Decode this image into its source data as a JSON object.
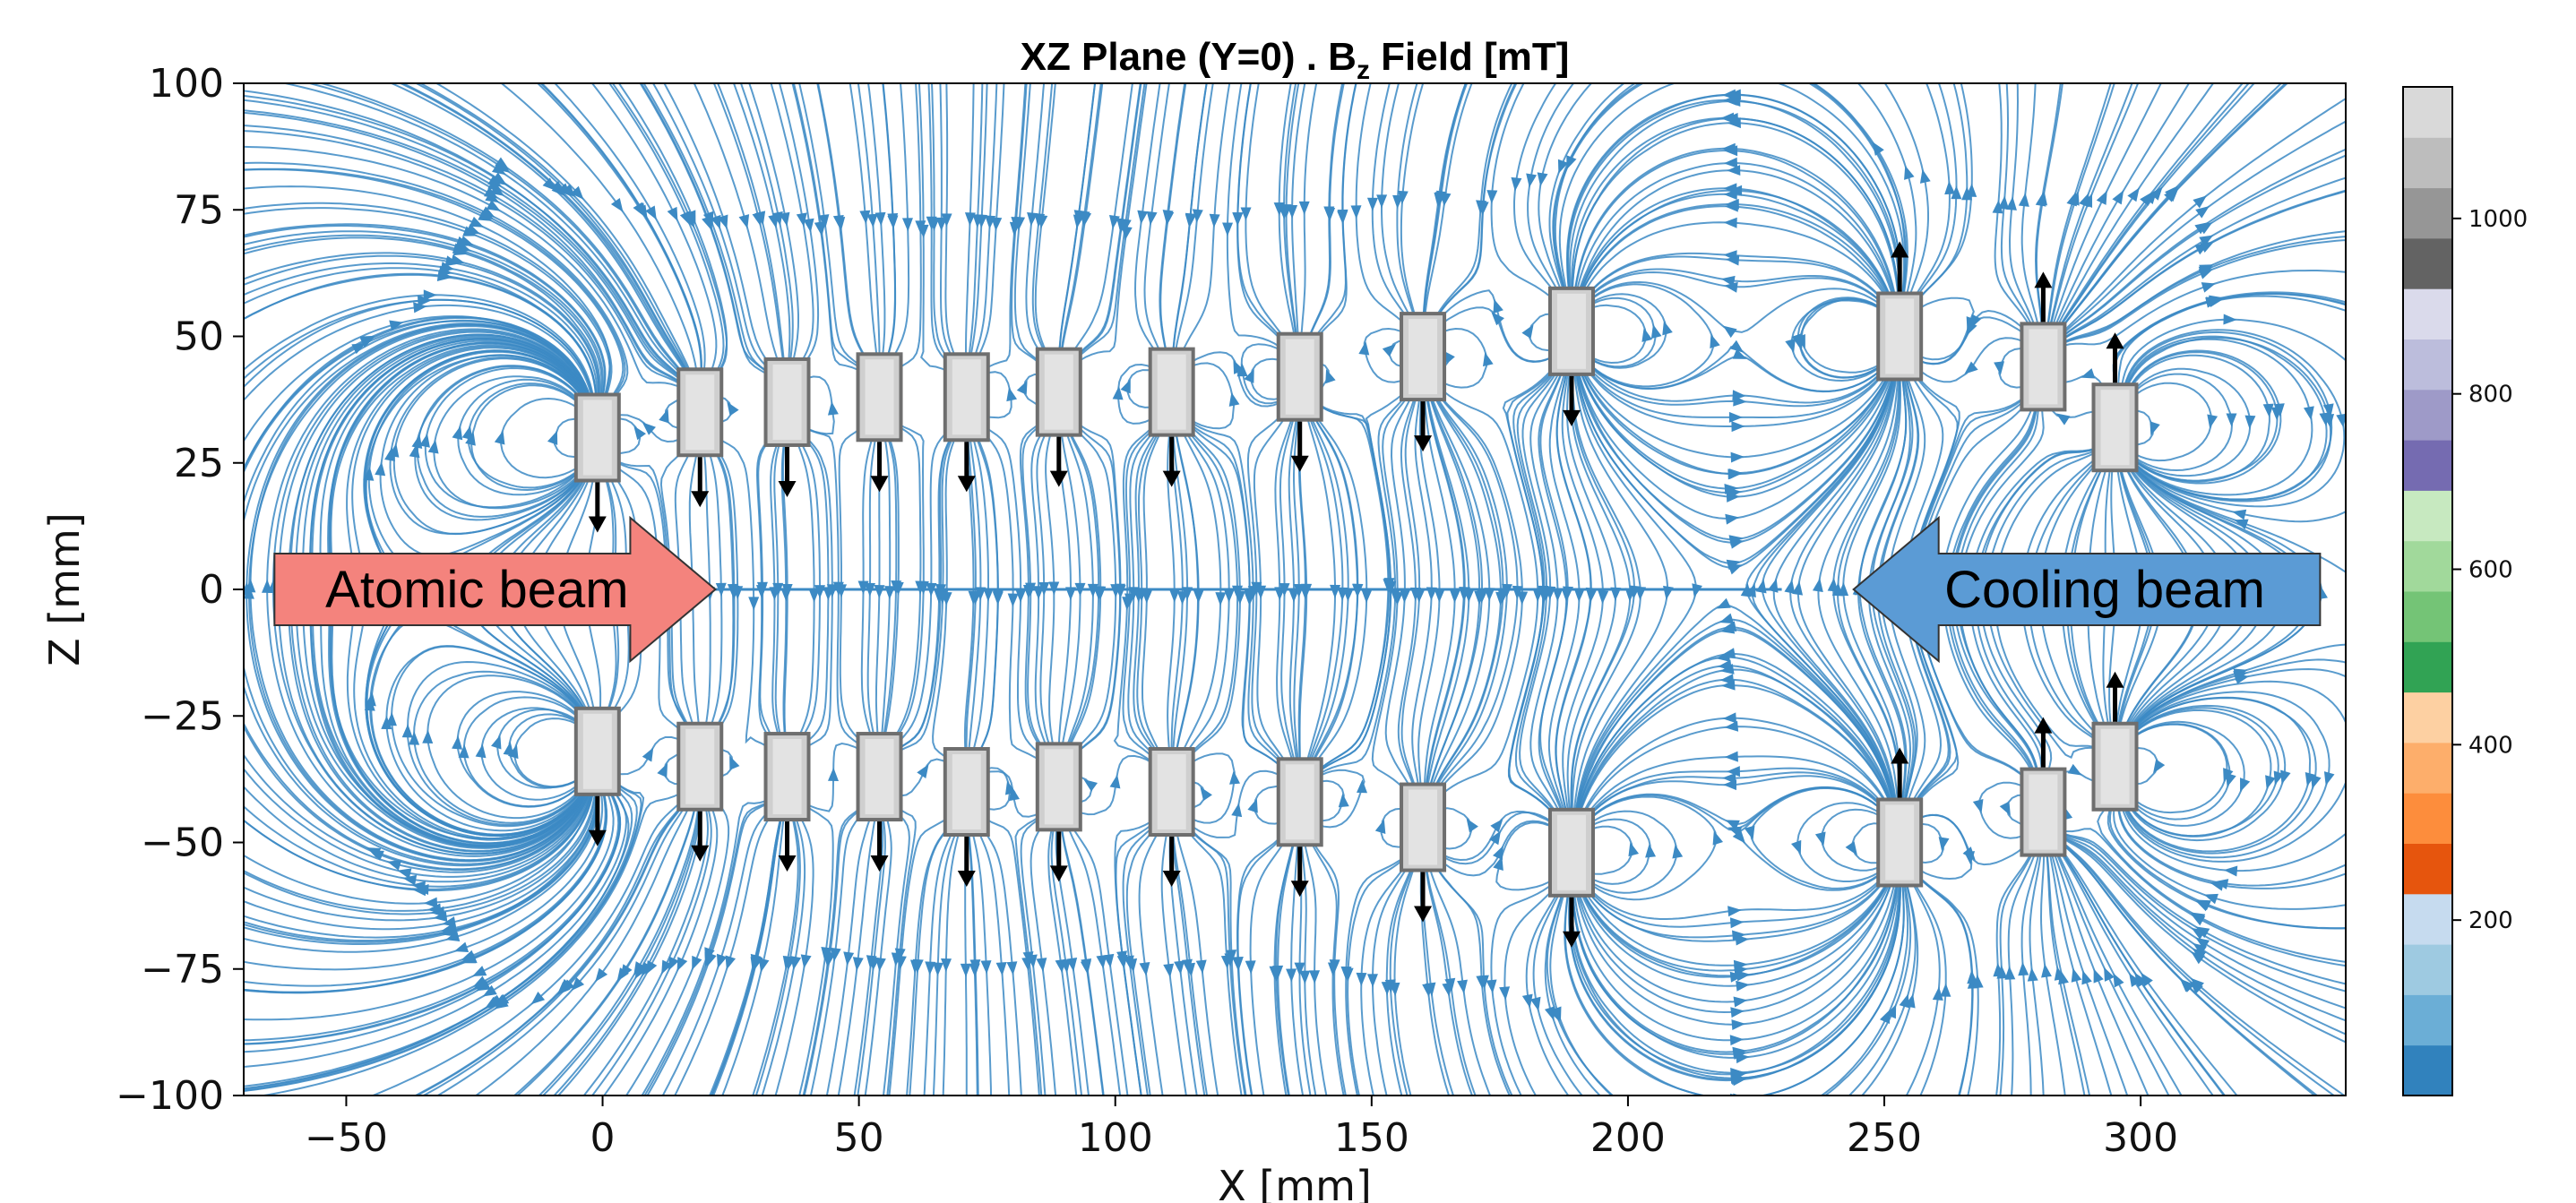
{
  "chart_data": {
    "type": "streamplot",
    "title_prefix": "XZ Plane (Y=0) . B",
    "title_subscript": "z",
    "title_suffix": " Field [mT]",
    "xlabel": "X [mm]",
    "ylabel": "Z [mm]",
    "xlim": [
      -70,
      340
    ],
    "ylim": [
      -100,
      100
    ],
    "x_ticks": [
      -50,
      0,
      50,
      100,
      150,
      200,
      250,
      300
    ],
    "y_ticks": [
      100,
      75,
      50,
      25,
      0,
      -25,
      -50,
      -75,
      -100
    ],
    "x_tick_labels": [
      "−50",
      "0",
      "50",
      "100",
      "150",
      "200",
      "250",
      "300"
    ],
    "y_tick_labels": [
      "100",
      "75",
      "50",
      "25",
      "0",
      "−25",
      "−50",
      "−75",
      "−100"
    ],
    "grid": false,
    "colorbar": {
      "range": [
        0,
        1150
      ],
      "ticks": [
        200,
        400,
        600,
        800,
        1000
      ],
      "tick_labels": [
        "200",
        "400",
        "600",
        "800",
        "1000"
      ],
      "colors": [
        "#3182bd",
        "#6baed6",
        "#9ecae1",
        "#c6dbef",
        "#e6550d",
        "#fd8d3c",
        "#fdae6b",
        "#fdd0a2",
        "#31a354",
        "#74c476",
        "#a1d99b",
        "#c7e9c0",
        "#756bb1",
        "#9e9ac8",
        "#bcbddc",
        "#dadaeb",
        "#636363",
        "#969696",
        "#bdbdbd",
        "#d9d9d9"
      ]
    },
    "stream_color": "#3c8ac4",
    "magnets_top": [
      {
        "x": -1,
        "z": 30,
        "dir": "down"
      },
      {
        "x": 19,
        "z": 35,
        "dir": "down"
      },
      {
        "x": 36,
        "z": 37,
        "dir": "down"
      },
      {
        "x": 54,
        "z": 38,
        "dir": "down"
      },
      {
        "x": 71,
        "z": 38,
        "dir": "down"
      },
      {
        "x": 89,
        "z": 39,
        "dir": "down"
      },
      {
        "x": 111,
        "z": 39,
        "dir": "down"
      },
      {
        "x": 136,
        "z": 42,
        "dir": "down"
      },
      {
        "x": 160,
        "z": 46,
        "dir": "down"
      },
      {
        "x": 189,
        "z": 51,
        "dir": "down"
      },
      {
        "x": 253,
        "z": 50,
        "dir": "up"
      },
      {
        "x": 281,
        "z": 44,
        "dir": "up"
      },
      {
        "x": 295,
        "z": 32,
        "dir": "up"
      }
    ],
    "magnets_bottom": [
      {
        "x": -1,
        "z": -32,
        "dir": "down"
      },
      {
        "x": 19,
        "z": -35,
        "dir": "down"
      },
      {
        "x": 36,
        "z": -37,
        "dir": "down"
      },
      {
        "x": 54,
        "z": -37,
        "dir": "down"
      },
      {
        "x": 71,
        "z": -40,
        "dir": "down"
      },
      {
        "x": 89,
        "z": -39,
        "dir": "down"
      },
      {
        "x": 111,
        "z": -40,
        "dir": "down"
      },
      {
        "x": 136,
        "z": -42,
        "dir": "down"
      },
      {
        "x": 160,
        "z": -47,
        "dir": "down"
      },
      {
        "x": 189,
        "z": -52,
        "dir": "down"
      },
      {
        "x": 253,
        "z": -50,
        "dir": "up"
      },
      {
        "x": 281,
        "z": -44,
        "dir": "up"
      },
      {
        "x": 295,
        "z": -35,
        "dir": "up"
      }
    ],
    "annotations": [
      {
        "text": "Atomic beam",
        "direction": "right",
        "color": "#f4837d",
        "x_from": -64,
        "x_to": 22,
        "z": 0
      },
      {
        "text": "Cooling beam",
        "direction": "left",
        "color": "#5b9bd5",
        "x_from": 335,
        "x_to": 244,
        "z": 0
      }
    ]
  }
}
